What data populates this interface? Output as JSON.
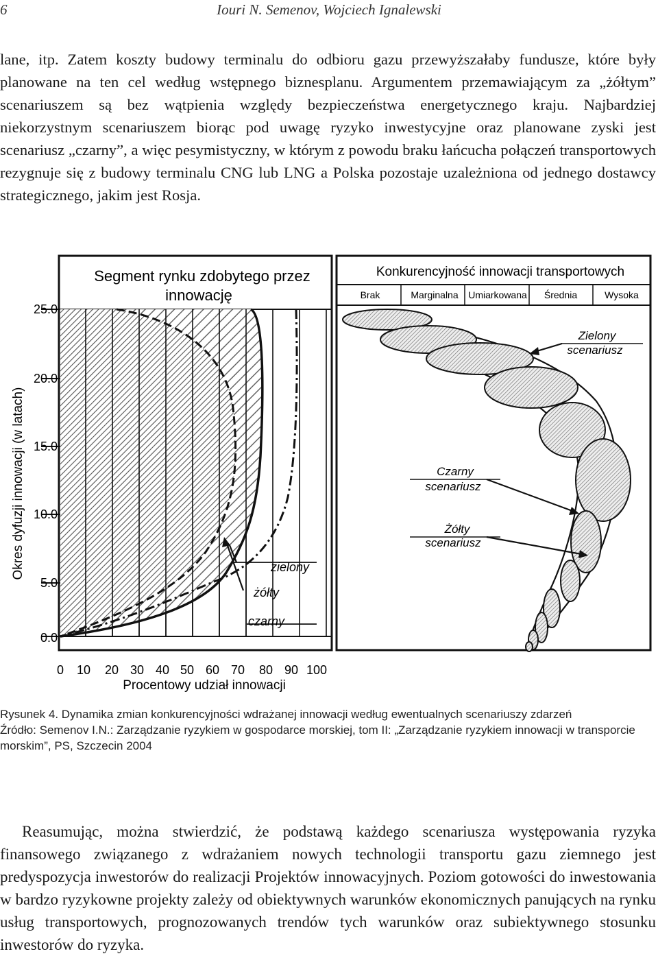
{
  "header": {
    "page_number": "6",
    "authors": "Iouri N. Semenov, Wojciech Ignalewski"
  },
  "paragraph_top": "lane, itp. Zatem koszty budowy terminalu do odbioru gazu przewyższałaby fundusze, które były planowane na ten cel według wstępnego biznesplanu. Argumentem przemawiającym za „żółtym” scenariuszem są bez wątpienia względy bezpieczeństwa energetycznego kraju. Najbardziej niekorzystnym scenariuszem biorąc pod uwagę ryzyko inwestycyjne oraz planowane zyski jest scenariusz „czarny”, a więc pesymistyczny, w którym z powodu braku łańcucha połączeń transportowych rezygnuje się z budowy terminalu CNG lub LNG a Polska pozostaje uzależniona od jednego dostawcy strategicznego, jakim jest Rosja.",
  "figure": {
    "left_title_line1": "Segment rynku zdobytego przez",
    "left_title_line2": "innowację",
    "right_title": "Konkurencyjność innowacji transportowych",
    "competitiveness_levels": [
      "Brak",
      "Marginalna",
      "Umiarkowana",
      "Średnia",
      "Wysoka"
    ],
    "y_axis_label": "Okres dyfuzji innowacji  (w latach)",
    "y_ticks": [
      "25.0",
      "20.0",
      "15.0",
      "10.0",
      "5.0",
      "0.0"
    ],
    "x_ticks": [
      "0",
      "10",
      "20",
      "30",
      "40",
      "50",
      "60",
      "70",
      "80",
      "90",
      "100"
    ],
    "x_axis_label": "Procentowy udział innowacji",
    "curve_labels": {
      "green": "zielony",
      "yellow": "żółty",
      "black": "czarny"
    },
    "scenario_labels": {
      "green_line1": "Zielony",
      "green_line2": "scenariusz",
      "black_line1": "Czarny",
      "black_line2": "scenariusz",
      "yellow_line1": "Żółty",
      "yellow_line2": "scenariusz"
    }
  },
  "caption": {
    "line1": "Rysunek 4. Dynamika zmian konkurencyjności wdrażanej innowacji według ewentualnych scenariuszy zdarzeń",
    "line2": "Źródło: Semenov I.N.: Zarządzanie ryzykiem w gospodarce morskiej, tom II: „Zarządzanie ryzykiem innowacji w transporcie morskim”, PS, Szczecin 2004"
  },
  "paragraph_bottom": "Reasumując, można stwierdzić, że podstawą każdego scenariusza występowania ryzyka finansowego związanego z wdrażaniem nowych technologii transportu gazu ziemnego jest predyspozycja inwestorów do realizacji Projektów innowacyjnych. Poziom gotowości do inwestowania w bardzo ryzykowne projekty zależy od obiektywnych warunków ekonomicznych panujących na rynku usług transportowych, prognozowanych trendów tych warunków oraz subiektywnego stosunku inwestorów do ryzyka."
}
